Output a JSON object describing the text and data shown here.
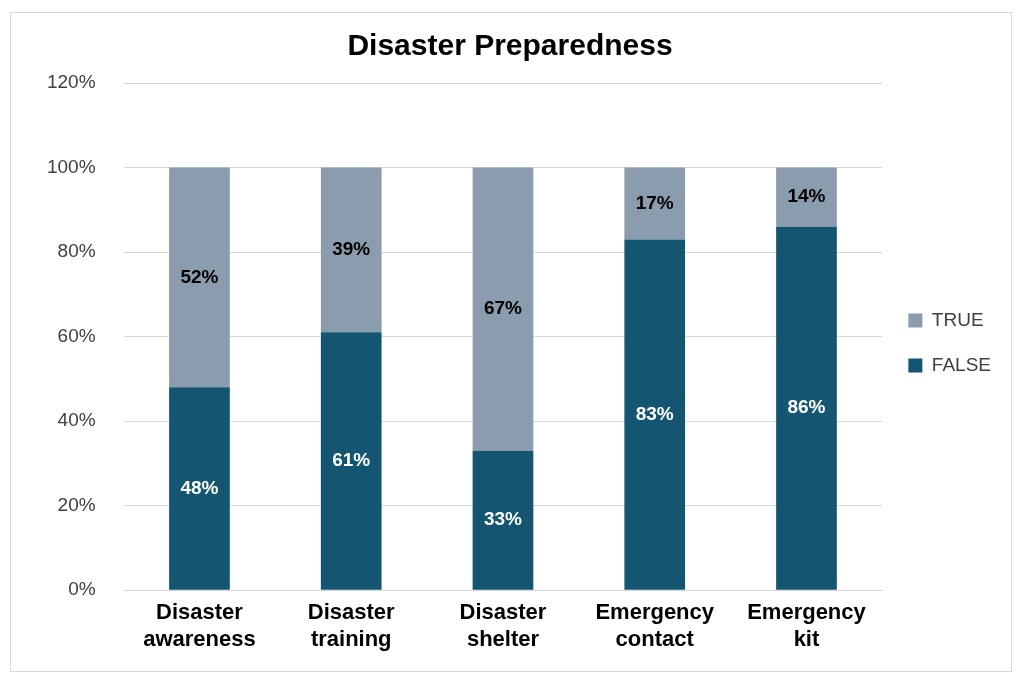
{
  "chart_data": {
    "type": "bar",
    "title": "Disaster Preparedness",
    "stacked": true,
    "categories": [
      "Disaster awareness",
      "Disaster training",
      "Disaster shelter",
      "Emergency contact",
      "Emergency kit"
    ],
    "series": [
      {
        "name": "FALSE",
        "color": "#145571",
        "values": [
          48,
          61,
          33,
          83,
          86
        ],
        "value_labels": [
          "48%",
          "61%",
          "33%",
          "83%",
          "86%"
        ]
      },
      {
        "name": "TRUE",
        "color": "#8a9cad",
        "values": [
          52,
          39,
          67,
          17,
          14
        ],
        "value_labels": [
          "52%",
          "39%",
          "67%",
          "17%",
          "14%"
        ]
      }
    ],
    "ylim": [
      0,
      120
    ],
    "yticks": [
      {
        "value": 0,
        "label": "0%"
      },
      {
        "value": 20,
        "label": "20%"
      },
      {
        "value": 40,
        "label": "40%"
      },
      {
        "value": 60,
        "label": "60%"
      },
      {
        "value": 80,
        "label": "80%"
      },
      {
        "value": 100,
        "label": "100%"
      },
      {
        "value": 120,
        "label": "120%"
      }
    ],
    "grid": "y",
    "legend": "right"
  }
}
